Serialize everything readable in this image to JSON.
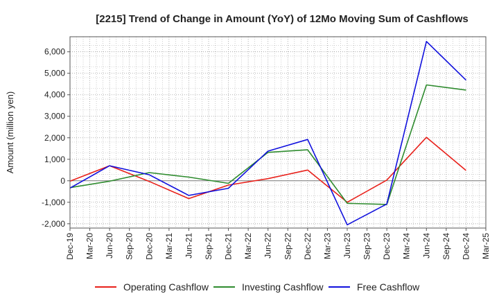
{
  "chart_data": {
    "type": "line",
    "title": "[2215]  Trend of Change in Amount (YoY) of 12Mo Moving Sum of Cashflows",
    "xlabel": "",
    "ylabel": "Amount (million yen)",
    "ylim": [
      -2200,
      6700
    ],
    "yticks": [
      -2000,
      -1000,
      0,
      1000,
      2000,
      3000,
      4000,
      5000,
      6000
    ],
    "ytick_labels": [
      "-2,000",
      "-1,000",
      "0",
      "1,000",
      "2,000",
      "3,000",
      "4,000",
      "5,000",
      "6,000"
    ],
    "categories": [
      "Dec-19",
      "Mar-20",
      "Jun-20",
      "Sep-20",
      "Dec-20",
      "Mar-21",
      "Jun-21",
      "Sep-21",
      "Dec-21",
      "Mar-22",
      "Jun-22",
      "Sep-22",
      "Dec-22",
      "Mar-23",
      "Jun-23",
      "Sep-23",
      "Dec-23",
      "Mar-24",
      "Jun-24",
      "Sep-24",
      "Dec-24",
      "Mar-25"
    ],
    "grid": true,
    "legend_position": "bottom",
    "series": [
      {
        "name": "Operating Cashflow",
        "color": "#e8201a",
        "points": [
          [
            "Dec-19",
            -20
          ],
          [
            "Jun-20",
            700
          ],
          [
            "Dec-20",
            -30
          ],
          [
            "Jun-21",
            -830
          ],
          [
            "Dec-21",
            -200
          ],
          [
            "Jun-22",
            100
          ],
          [
            "Dec-22",
            500
          ],
          [
            "Jun-23",
            -1000
          ],
          [
            "Dec-23",
            30
          ],
          [
            "Jun-24",
            2020
          ],
          [
            "Dec-24",
            480
          ]
        ]
      },
      {
        "name": "Investing Cashflow",
        "color": "#2e8b2e",
        "points": [
          [
            "Dec-19",
            -320
          ],
          [
            "Jun-20",
            -20
          ],
          [
            "Dec-20",
            380
          ],
          [
            "Jun-21",
            170
          ],
          [
            "Dec-21",
            -120
          ],
          [
            "Jun-22",
            1320
          ],
          [
            "Dec-22",
            1440
          ],
          [
            "Jun-23",
            -1050
          ],
          [
            "Dec-23",
            -1100
          ],
          [
            "Jun-24",
            4460
          ],
          [
            "Dec-24",
            4220
          ]
        ]
      },
      {
        "name": "Free Cashflow",
        "color": "#1010dd",
        "points": [
          [
            "Dec-19",
            -340
          ],
          [
            "Jun-20",
            700
          ],
          [
            "Dec-20",
            280
          ],
          [
            "Jun-21",
            -680
          ],
          [
            "Dec-21",
            -350
          ],
          [
            "Jun-22",
            1380
          ],
          [
            "Dec-22",
            1920
          ],
          [
            "Jun-23",
            -2050
          ],
          [
            "Dec-23",
            -1080
          ],
          [
            "Jun-24",
            6480
          ],
          [
            "Dec-24",
            4680
          ]
        ]
      }
    ]
  }
}
